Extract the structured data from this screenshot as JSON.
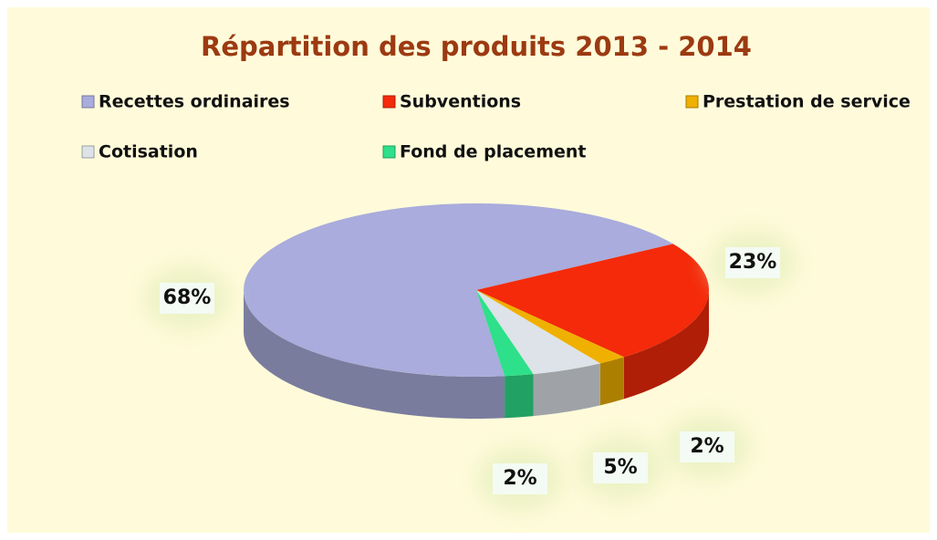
{
  "chart_data": {
    "type": "pie3d",
    "title": "Répartition des produits 2013 - 2014",
    "categories": [
      "Recettes ordinaires",
      "Subventions",
      "Prestation de service",
      "Cotisation",
      "Fond de placement"
    ],
    "values": [
      68,
      23,
      2,
      5,
      2
    ],
    "value_labels": [
      "68%",
      "23%",
      "2%",
      "5%",
      "2%"
    ],
    "colors": [
      "#a9acdc",
      "#f42a0a",
      "#f0b000",
      "#dde3e8",
      "#2ee08a"
    ]
  }
}
